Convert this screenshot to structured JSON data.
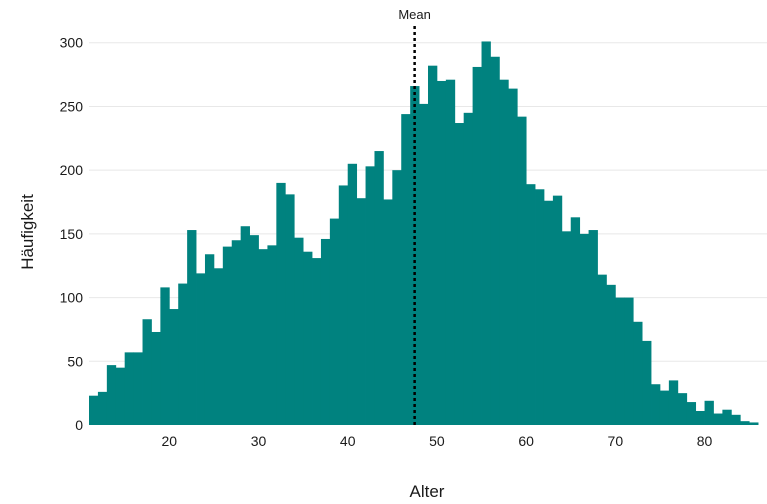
{
  "chart_data": {
    "type": "bar",
    "title": "",
    "xlabel": "Alter",
    "ylabel": "Häufigkeit",
    "bin_width": 1,
    "bin_start": 11,
    "xlim": [
      11,
      87
    ],
    "ylim": [
      0,
      310
    ],
    "x_ticks": [
      20,
      30,
      40,
      50,
      60,
      70,
      80
    ],
    "y_ticks": [
      0,
      50,
      100,
      150,
      200,
      250,
      300
    ],
    "values": [
      23,
      26,
      47,
      45,
      57,
      57,
      83,
      73,
      108,
      91,
      111,
      153,
      119,
      134,
      123,
      140,
      145,
      156,
      149,
      138,
      141,
      190,
      181,
      147,
      136,
      131,
      146,
      162,
      188,
      205,
      178,
      203,
      215,
      177,
      200,
      244,
      266,
      252,
      282,
      270,
      271,
      237,
      245,
      281,
      301,
      289,
      271,
      264,
      242,
      189,
      185,
      176,
      180,
      152,
      163,
      150,
      153,
      118,
      110,
      100,
      100,
      81,
      66,
      32,
      27,
      35,
      25,
      18,
      11,
      19,
      9,
      12,
      8,
      3,
      2
    ],
    "mean": 47.5,
    "mean_label": "Mean",
    "grid": "horizontal",
    "colors": {
      "bar": "#00827f",
      "mean_line": "#000000",
      "grid": "#e8e8e8"
    }
  }
}
